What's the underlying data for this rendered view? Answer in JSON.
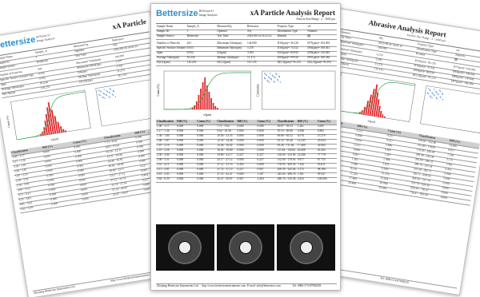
{
  "pages": [
    {
      "brand": "Bettersize",
      "company": [
        "BeVision S1",
        "Image Analyzer"
      ],
      "title": "xA Particle",
      "info": [
        [
          "Sample Name",
          "Sample_A",
          "Measured by",
          "Bettersize"
        ],
        [
          "Sample ID",
          "1",
          "Operator",
          "Aly"
        ],
        [
          "Sample Source",
          "Bettersize",
          "Test Time",
          "2022-08-24 14:41:12"
        ]
      ],
      "stats": [
        [
          "Number of Particles",
          "441",
          "Maximum Value(μm)",
          "144.000"
        ],
        [
          "Specific Surface Area(m²/kg)",
          "0.055",
          "Minimum Value(μm)",
          "5.270"
        ],
        [
          "Span",
          "0.932",
          "D4(μm)",
          "3.393"
        ],
        [
          "Average Value(μm)",
          "95.234",
          "Median Value(μm)",
          "11.272"
        ],
        [
          "D[4,3](μm)",
          "116.253",
          "D[3,2](μm)",
          "115.135"
        ]
      ],
      "x_label": "x/(μm)",
      "y_label": "Cumu (%)",
      "table_header": [
        "Classification",
        "Diff (%)",
        "Cumu (%)",
        "Classification",
        "Diff (%)"
      ],
      "rows": [
        [
          "1.00 - 1.17",
          "0.000",
          "0.000",
          "7.71 - 9.02",
          "0.000"
        ],
        [
          "1.17 - 1.36",
          "0.000",
          "0.000",
          "9.02 - 10.56",
          "0.000"
        ],
        [
          "1.36 - 1.60",
          "0.000",
          "0.000",
          "10.56 - 12.35",
          "0.000"
        ],
        [
          "1.60 - 1.87",
          "0.000",
          "0.000",
          "12.35 - 14.46",
          "0.000"
        ],
        [
          "1.87 - 2.19",
          "0.000",
          "0.000",
          "14.46 - 16.92",
          "0.000"
        ],
        [
          "2.19 - 2.56",
          "0.000",
          "0.000",
          "16.92 - 19.80",
          "0.000"
        ],
        [
          "2.56 - 3.00",
          "0.000",
          "0.000",
          "19.80 - 23.17",
          "0.227"
        ],
        [
          "3.00 - 3.51",
          "0.000",
          "0.000",
          "23.17 - 27.12",
          "0.000"
        ],
        [
          "3.51 - 4.11",
          "0.000",
          "0.000",
          "27.12 - 31.74",
          "0.454"
        ],
        [
          "4.11 - 4.81",
          "0.000",
          "0.000",
          "31.74 - 37.14",
          "0.227"
        ],
        [
          "4.81 - 5.63",
          "0.000",
          "0.000",
          "37.14 - 43.47",
          "0.680"
        ],
        [
          "5.63 - 6.59",
          "0.000",
          "0.000",
          "43.47 - 50.87",
          "0.907"
        ]
      ],
      "footer": [
        "Zhejiang Bettersize Instruments Ltd.",
        "http://www.bettersizeinstruments.com"
      ]
    },
    {
      "brand": "Bettersize",
      "company": [
        "BeVision S1",
        "Image Analyzer"
      ],
      "title": "xA Particle Analysis Report",
      "subtitle": "Particle Size Range : 2 - 3000 μm",
      "info": [
        [
          "Sample Name",
          "Sample_A",
          "Measured by",
          "Bettersize",
          "Property Type",
          "xA"
        ],
        [
          "Sample ID",
          "1",
          "Operator",
          "Aly",
          "Distribution Type",
          "Numeric"
        ],
        [
          "Sample Source",
          "Bettersize",
          "Test Time",
          "2022-08-24 14:41:12",
          "Remark",
          "囲"
        ]
      ],
      "stats": [
        [
          "Number of Particles",
          "441",
          "Maximum Value(μm)",
          "144.000",
          "D10(μm)= 36.126",
          "D75(μm)= 104.065"
        ],
        [
          "Specific Surface Area(m²/kg)",
          "0.055",
          "Minimum Value(μm)",
          "5.270",
          "D16(μm)= 70.332",
          "D84(μm)= 108.041"
        ],
        [
          "Span",
          "0.932",
          "D4(μm)",
          "3.393",
          "D25(μm)= 80.943",
          "D90(μm)= 130.845"
        ],
        [
          "Average Value(μm)",
          "95.234",
          "Median Value(μm)",
          "11.272",
          "D50(μm)= 99.930",
          "D97(μm)= 168.384"
        ],
        [
          "D[4,3](μm)",
          "116.253",
          "D[3,2](μm)",
          "115.135",
          "D[5,3](μm)= 95.215",
          "D[4,3](μm)= 93.393"
        ]
      ],
      "x_label": "x/(μm)",
      "y_label": "Cumu (%)",
      "scatter_y_label": "Circularity",
      "table_header": [
        "Classification",
        "Diff (%)",
        "Cumu (%)",
        "Classification",
        "Diff (%)",
        "Cumu (%)",
        "Classification",
        "Diff (%)",
        "Cumu (%)"
      ],
      "rows": [
        [
          "1.00 - 1.17",
          "0.000",
          "0.000",
          "7.71 - 9.02",
          "0.000",
          "0.000",
          "50.87 - 59.53",
          "1.361",
          "3.855"
        ],
        [
          "1.17 - 1.36",
          "0.000",
          "0.000",
          "9.02 - 10.56",
          "0.000",
          "0.000",
          "59.53 - 69.66",
          "2.948",
          "6.803"
        ],
        [
          "1.36 - 1.60",
          "0.000",
          "0.000",
          "10.56 - 12.35",
          "0.000",
          "0.000",
          "69.66 - 81.52",
          "6.576",
          "13.379"
        ],
        [
          "1.60 - 1.87",
          "0.000",
          "0.000",
          "12.35 - 14.46",
          "0.000",
          "0.000",
          "81.52 - 95.40",
          "12.245",
          "25.624"
        ],
        [
          "1.87 - 2.19",
          "0.000",
          "0.000",
          "14.46 - 16.92",
          "0.000",
          "0.000",
          "95.40 - 111.64",
          "17.460",
          "43.084"
        ],
        [
          "2.19 - 2.56",
          "0.000",
          "0.000",
          "16.92 - 19.80",
          "0.000",
          "0.000",
          "111.64 - 130.65",
          "20.408",
          "63.492"
        ],
        [
          "2.56 - 3.00",
          "0.000",
          "0.000",
          "19.80 - 23.17",
          "0.227",
          "0.227",
          "130.65 - 152.90",
          "14.286",
          "77.778"
        ],
        [
          "3.00 - 3.51",
          "0.000",
          "0.000",
          "23.17 - 27.12",
          "0.000",
          "0.227",
          "152.90 - 178.93",
          "9.977",
          "87.755"
        ],
        [
          "3.51 - 4.11",
          "0.000",
          "0.000",
          "27.12 - 31.74",
          "0.454",
          "0.680",
          "178.93 - 209.39",
          "7.256",
          "95.011"
        ],
        [
          "4.11 - 4.81",
          "0.000",
          "0.000",
          "31.74 - 37.14",
          "0.227",
          "0.907",
          "209.39 - 245.04",
          "3.175",
          "98.186"
        ],
        [
          "4.81 - 5.63",
          "0.000",
          "0.000",
          "37.14 - 43.47",
          "0.680",
          "1.587",
          "245.04 - 286.76",
          "1.361",
          "99.547"
        ],
        [
          "5.63 - 6.59",
          "0.000",
          "0.000",
          "43.47 - 50.87",
          "0.907",
          "2.494",
          "286.76 - 335.58",
          "0.453",
          "100.000"
        ]
      ],
      "footer": [
        "Zhejiang Bettersize Instruments Ltd.",
        "http://www.bettersizeinstruments.com",
        "E-mail: info@bettersize.com",
        "Tel: 0086-574-87908258"
      ]
    },
    {
      "title": "Abrasive Analysis Report",
      "subtitle": "Particle Size Range : 2 - 3000 μm",
      "info": [
        [
          "Operator",
          "Aly",
          "Property Type",
          "xA"
        ],
        [
          "Test Time",
          "2022-08-24 14:41:12",
          "Distribution Type",
          "Numeric"
        ],
        [
          "Maximum Value(μm)",
          "144.000",
          "Remark",
          "囲"
        ]
      ],
      "stats": [
        [
          "Minimum Value(μm)",
          "5.270",
          "D10(μm)= 36.126",
          "D75(μm)= 104.065"
        ],
        [
          "D4(μm)",
          "3.393",
          "D16(μm)= 70.332",
          "D84(μm)= 108.041"
        ],
        [
          "Median Value(μm)",
          "11.272",
          "D50(μm)= 99.930",
          "D90(μm)= 130.845"
        ],
        [
          "D[3,2](μm)",
          "115.135",
          "D[5,3](μm)= 95.215",
          "D97(μm)= 168.384"
        ]
      ],
      "x_label": "x/(μm)",
      "y_label": "Cumu (%)",
      "table_header": [
        "Classification",
        "Diff (%)",
        "Cumu (%)",
        "Classification",
        "Diff (%)"
      ],
      "rows": [
        [
          "19.80 - 23.17",
          "0.227",
          "0.227",
          "130.65 - 152.90",
          "14.286"
        ],
        [
          "23.17 - 27.12",
          "0.000",
          "0.227",
          "152.90 - 178.93",
          "9.977"
        ],
        [
          "27.12 - 31.74",
          "0.454",
          "0.680",
          "178.93 - 209.39",
          "7.256"
        ],
        [
          "31.74 - 37.14",
          "0.227",
          "0.907",
          "209.39 - 245.04",
          "3.175"
        ],
        [
          "37.14 - 43.47",
          "0.680",
          "1.587",
          "245.04 - 286.76",
          "1.361"
        ],
        [
          "43.47 - 50.87",
          "0.907",
          "2.494",
          "286.76 - 335.58",
          "0.453"
        ],
        [
          "50.87 - 59.53",
          "1.361",
          "3.855",
          "335.58 - 392.71",
          "0.000"
        ],
        [
          "59.53 - 69.66",
          "2.948",
          "6.803",
          "392.71 - 459.56",
          "0.000"
        ],
        [
          "69.66 - 81.52",
          "6.576",
          "13.379",
          "459.56 - 537.79",
          "0.000"
        ],
        [
          "81.52 - 95.40",
          "12.245",
          "25.624",
          "537.79 - 629.34",
          "0.000"
        ],
        [
          "95.40 - 111.64",
          "17.460",
          "43.084",
          "629.34 - 736.47",
          "0.000"
        ],
        [
          "111.64 - 130.65",
          "20.408",
          "63.492",
          "736.47 - 861.84",
          "0.000"
        ]
      ],
      "footer": [
        "E-mail: info@bettersize.com",
        "Tel: 0086-574-87908258"
      ]
    }
  ]
}
